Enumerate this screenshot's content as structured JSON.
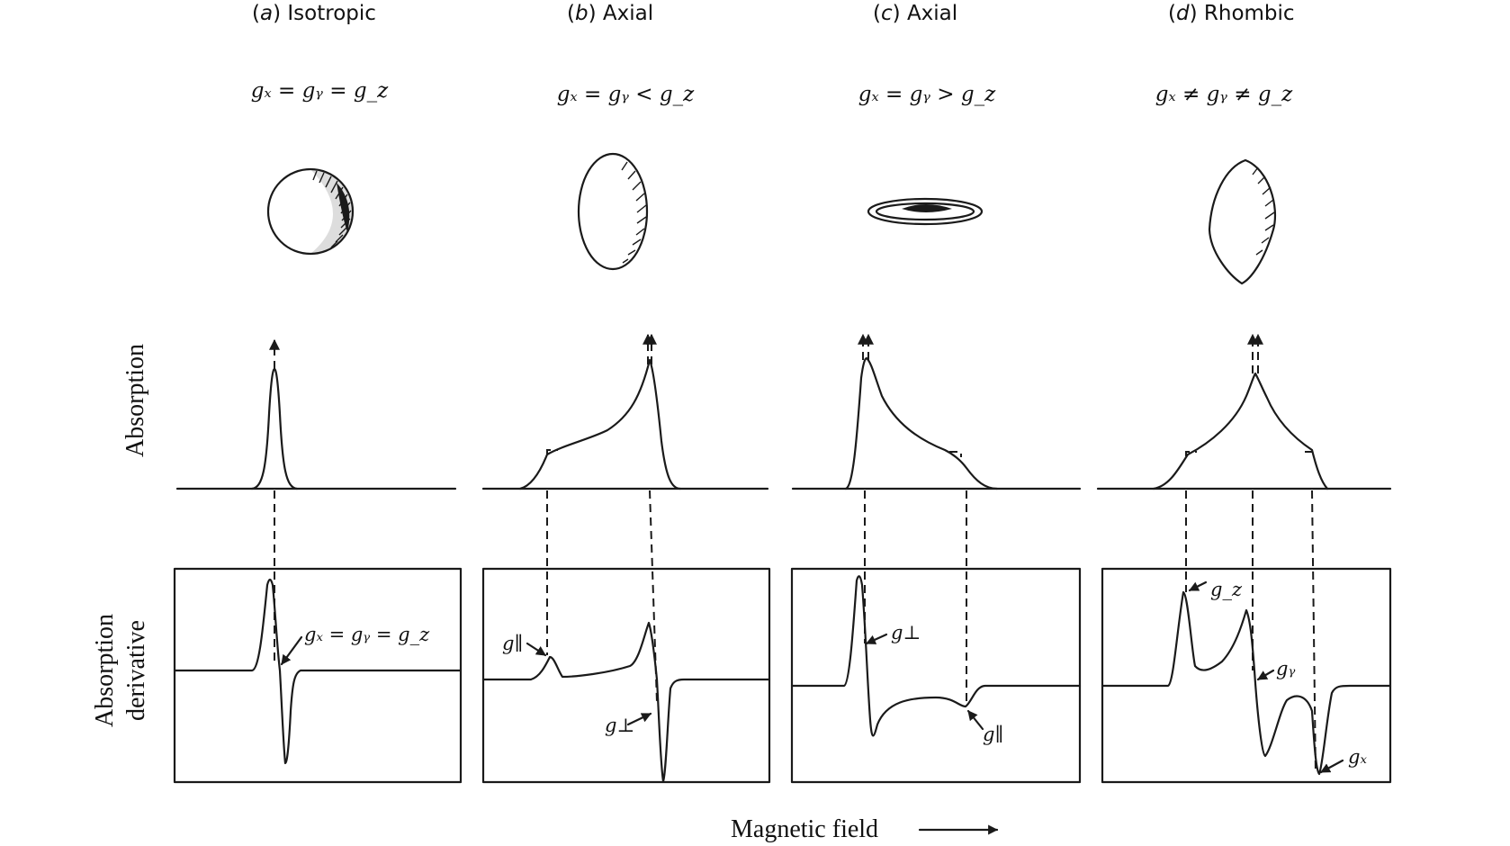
{
  "panels": [
    {
      "id": "a",
      "tag": "a",
      "title": "Isotropic",
      "relation": "gₓ = gᵧ = g_z",
      "labels": [
        "gₓ = gᵧ = g_z"
      ]
    },
    {
      "id": "b",
      "tag": "b",
      "title": "Axial",
      "relation": "gₓ = gᵧ < g_z",
      "labels": [
        "g∥",
        "g⊥"
      ]
    },
    {
      "id": "c",
      "tag": "c",
      "title": "Axial",
      "relation": "gₓ = gᵧ > g_z",
      "labels": [
        "g⊥",
        "g∥"
      ]
    },
    {
      "id": "d",
      "tag": "d",
      "title": "Rhombic",
      "relation": "gₓ ≠ gᵧ ≠ g_z",
      "labels": [
        "g_z",
        "gᵧ",
        "gₓ"
      ]
    }
  ],
  "axes": {
    "absorption_label": "Absorption",
    "derivative_label_line1": "Absorption",
    "derivative_label_line2": "derivative",
    "xlabel": "Magnetic field"
  },
  "colors": {
    "ink": "#1a1a1a",
    "background": "#ffffff"
  }
}
